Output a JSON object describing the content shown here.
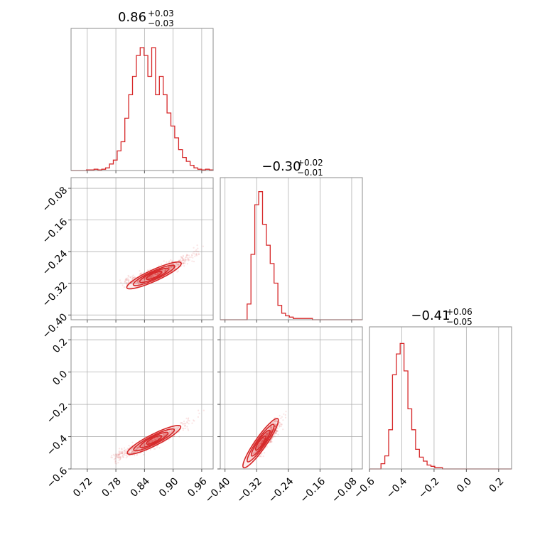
{
  "chart_data": {
    "type": "corner",
    "color": "#d62728",
    "parameters": [
      {
        "median": "0.86",
        "plus": "+0.03",
        "minus": "−0.03",
        "range": [
          0.686,
          0.984
        ],
        "ticks": [
          0.72,
          0.78,
          0.84,
          0.9,
          0.96
        ],
        "tick_labels": [
          "0.72",
          "0.78",
          "0.84",
          "0.90",
          "0.96"
        ],
        "hist": [
          0,
          0,
          0,
          0,
          0.005,
          0.005,
          0.01,
          0.005,
          0.01,
          0.02,
          0.05,
          0.08,
          0.15,
          0.22,
          0.4,
          0.58,
          0.72,
          0.88,
          0.94,
          0.88,
          0.72,
          0.94,
          0.58,
          0.72,
          0.58,
          0.44,
          0.34,
          0.25,
          0.16,
          0.1,
          0.07,
          0.04,
          0.02,
          0.01,
          0.005,
          0.01,
          0.005
        ]
      },
      {
        "median": "−0.30",
        "plus": "+0.02",
        "minus": "−0.01",
        "range": [
          -0.412,
          -0.053
        ],
        "ticks": [
          -0.4,
          -0.32,
          -0.24,
          -0.16,
          -0.08
        ],
        "tick_labels": [
          "−0.40",
          "−0.32",
          "−0.24",
          "−0.16",
          "−0.08"
        ],
        "hist": [
          0,
          0,
          0,
          0,
          0,
          0,
          0,
          0.12,
          0.5,
          0.88,
          0.98,
          0.73,
          0.57,
          0.43,
          0.28,
          0.11,
          0.05,
          0.03,
          0.02,
          0.01,
          0.01,
          0.01,
          0.01,
          0.01,
          0,
          0,
          0,
          0,
          0,
          0,
          0,
          0,
          0,
          0,
          0,
          0,
          0
        ]
      },
      {
        "median": "−0.41",
        "plus": "+0.06",
        "minus": "−0.05",
        "range": [
          -0.6,
          0.28
        ],
        "ticks": [
          -0.6,
          -0.4,
          -0.2,
          0.0,
          0.2
        ],
        "tick_labels": [
          "−0.6",
          "−0.4",
          "−0.2",
          "0.0",
          "0.2"
        ],
        "hist": [
          0,
          0,
          0,
          0.04,
          0.1,
          0.3,
          0.72,
          0.88,
          0.96,
          0.75,
          0.46,
          0.3,
          0.15,
          0.09,
          0.06,
          0.03,
          0.02,
          0.01,
          0.01,
          0,
          0,
          0,
          0,
          0,
          0,
          0,
          0,
          0,
          0,
          0,
          0,
          0,
          0,
          0,
          0,
          0,
          0
        ]
      }
    ],
    "pairs": [
      {
        "x_param": 0,
        "y_param": 1,
        "trend": [
          [
            0.8,
            -0.318
          ],
          [
            0.84,
            -0.305
          ],
          [
            0.88,
            -0.288
          ],
          [
            0.92,
            -0.265
          ],
          [
            0.96,
            -0.235
          ],
          [
            0.984,
            -0.215
          ]
        ],
        "center": [
          0.86,
          -0.3
        ]
      },
      {
        "x_param": 0,
        "y_param": 2,
        "trend": [
          [
            0.78,
            -0.53
          ],
          [
            0.82,
            -0.48
          ],
          [
            0.86,
            -0.43
          ],
          [
            0.9,
            -0.37
          ],
          [
            0.94,
            -0.29
          ],
          [
            0.984,
            -0.18
          ]
        ],
        "center": [
          0.86,
          -0.42
        ]
      },
      {
        "x_param": 1,
        "y_param": 2,
        "trend": [
          [
            -0.32,
            -0.5
          ],
          [
            -0.3,
            -0.43
          ],
          [
            -0.28,
            -0.36
          ],
          [
            -0.26,
            -0.29
          ],
          [
            -0.24,
            -0.22
          ]
        ],
        "center": [
          -0.31,
          -0.44
        ]
      }
    ]
  }
}
